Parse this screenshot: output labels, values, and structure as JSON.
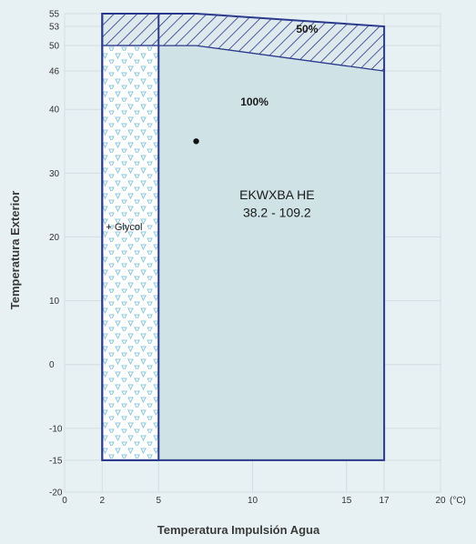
{
  "chart_data": {
    "type": "area",
    "title": "",
    "xlabel": "Temperatura Impulsión Agua",
    "ylabel": "Temperatura Exterior",
    "x_unit": "(°C)",
    "xlim": [
      0,
      20
    ],
    "ylim": [
      -20,
      55
    ],
    "x_ticks": [
      0,
      2,
      5,
      10,
      15,
      17,
      20
    ],
    "y_ticks": [
      -20,
      -15,
      -10,
      0,
      10,
      20,
      30,
      40,
      46,
      50,
      53,
      55
    ],
    "grid": true,
    "regions": [
      {
        "label": "100%",
        "polygon": [
          [
            5,
            -15
          ],
          [
            17,
            -15
          ],
          [
            17,
            46
          ],
          [
            7,
            50
          ],
          [
            5,
            50
          ]
        ],
        "fill": "#cfe2e6"
      },
      {
        "label": "50%",
        "pattern": "hatch",
        "polygon": [
          [
            5,
            50
          ],
          [
            7,
            50
          ],
          [
            17,
            46
          ],
          [
            17,
            53
          ],
          [
            7,
            55
          ],
          [
            5,
            55
          ]
        ]
      },
      {
        "label": "+ Glycol",
        "pattern": "triangles",
        "polygon": [
          [
            2,
            -15
          ],
          [
            5,
            -15
          ],
          [
            5,
            50
          ],
          [
            2,
            50
          ]
        ],
        "top_hatch": [
          [
            2,
            50
          ],
          [
            5,
            50
          ],
          [
            5,
            55
          ],
          [
            2,
            55
          ]
        ]
      }
    ],
    "points": [
      {
        "x": 7,
        "y": 35
      }
    ],
    "annotations": {
      "model": "EKWXBA HE",
      "range": "38.2 - 109.2",
      "label_100": "100%",
      "label_50": "50%",
      "label_glycol": "+ Glycol"
    },
    "colors": {
      "outline": "#2b3a8c",
      "fill_main": "#cfe2e6",
      "triangle": "#8ec8dc",
      "background": "#e7f1f3"
    }
  }
}
